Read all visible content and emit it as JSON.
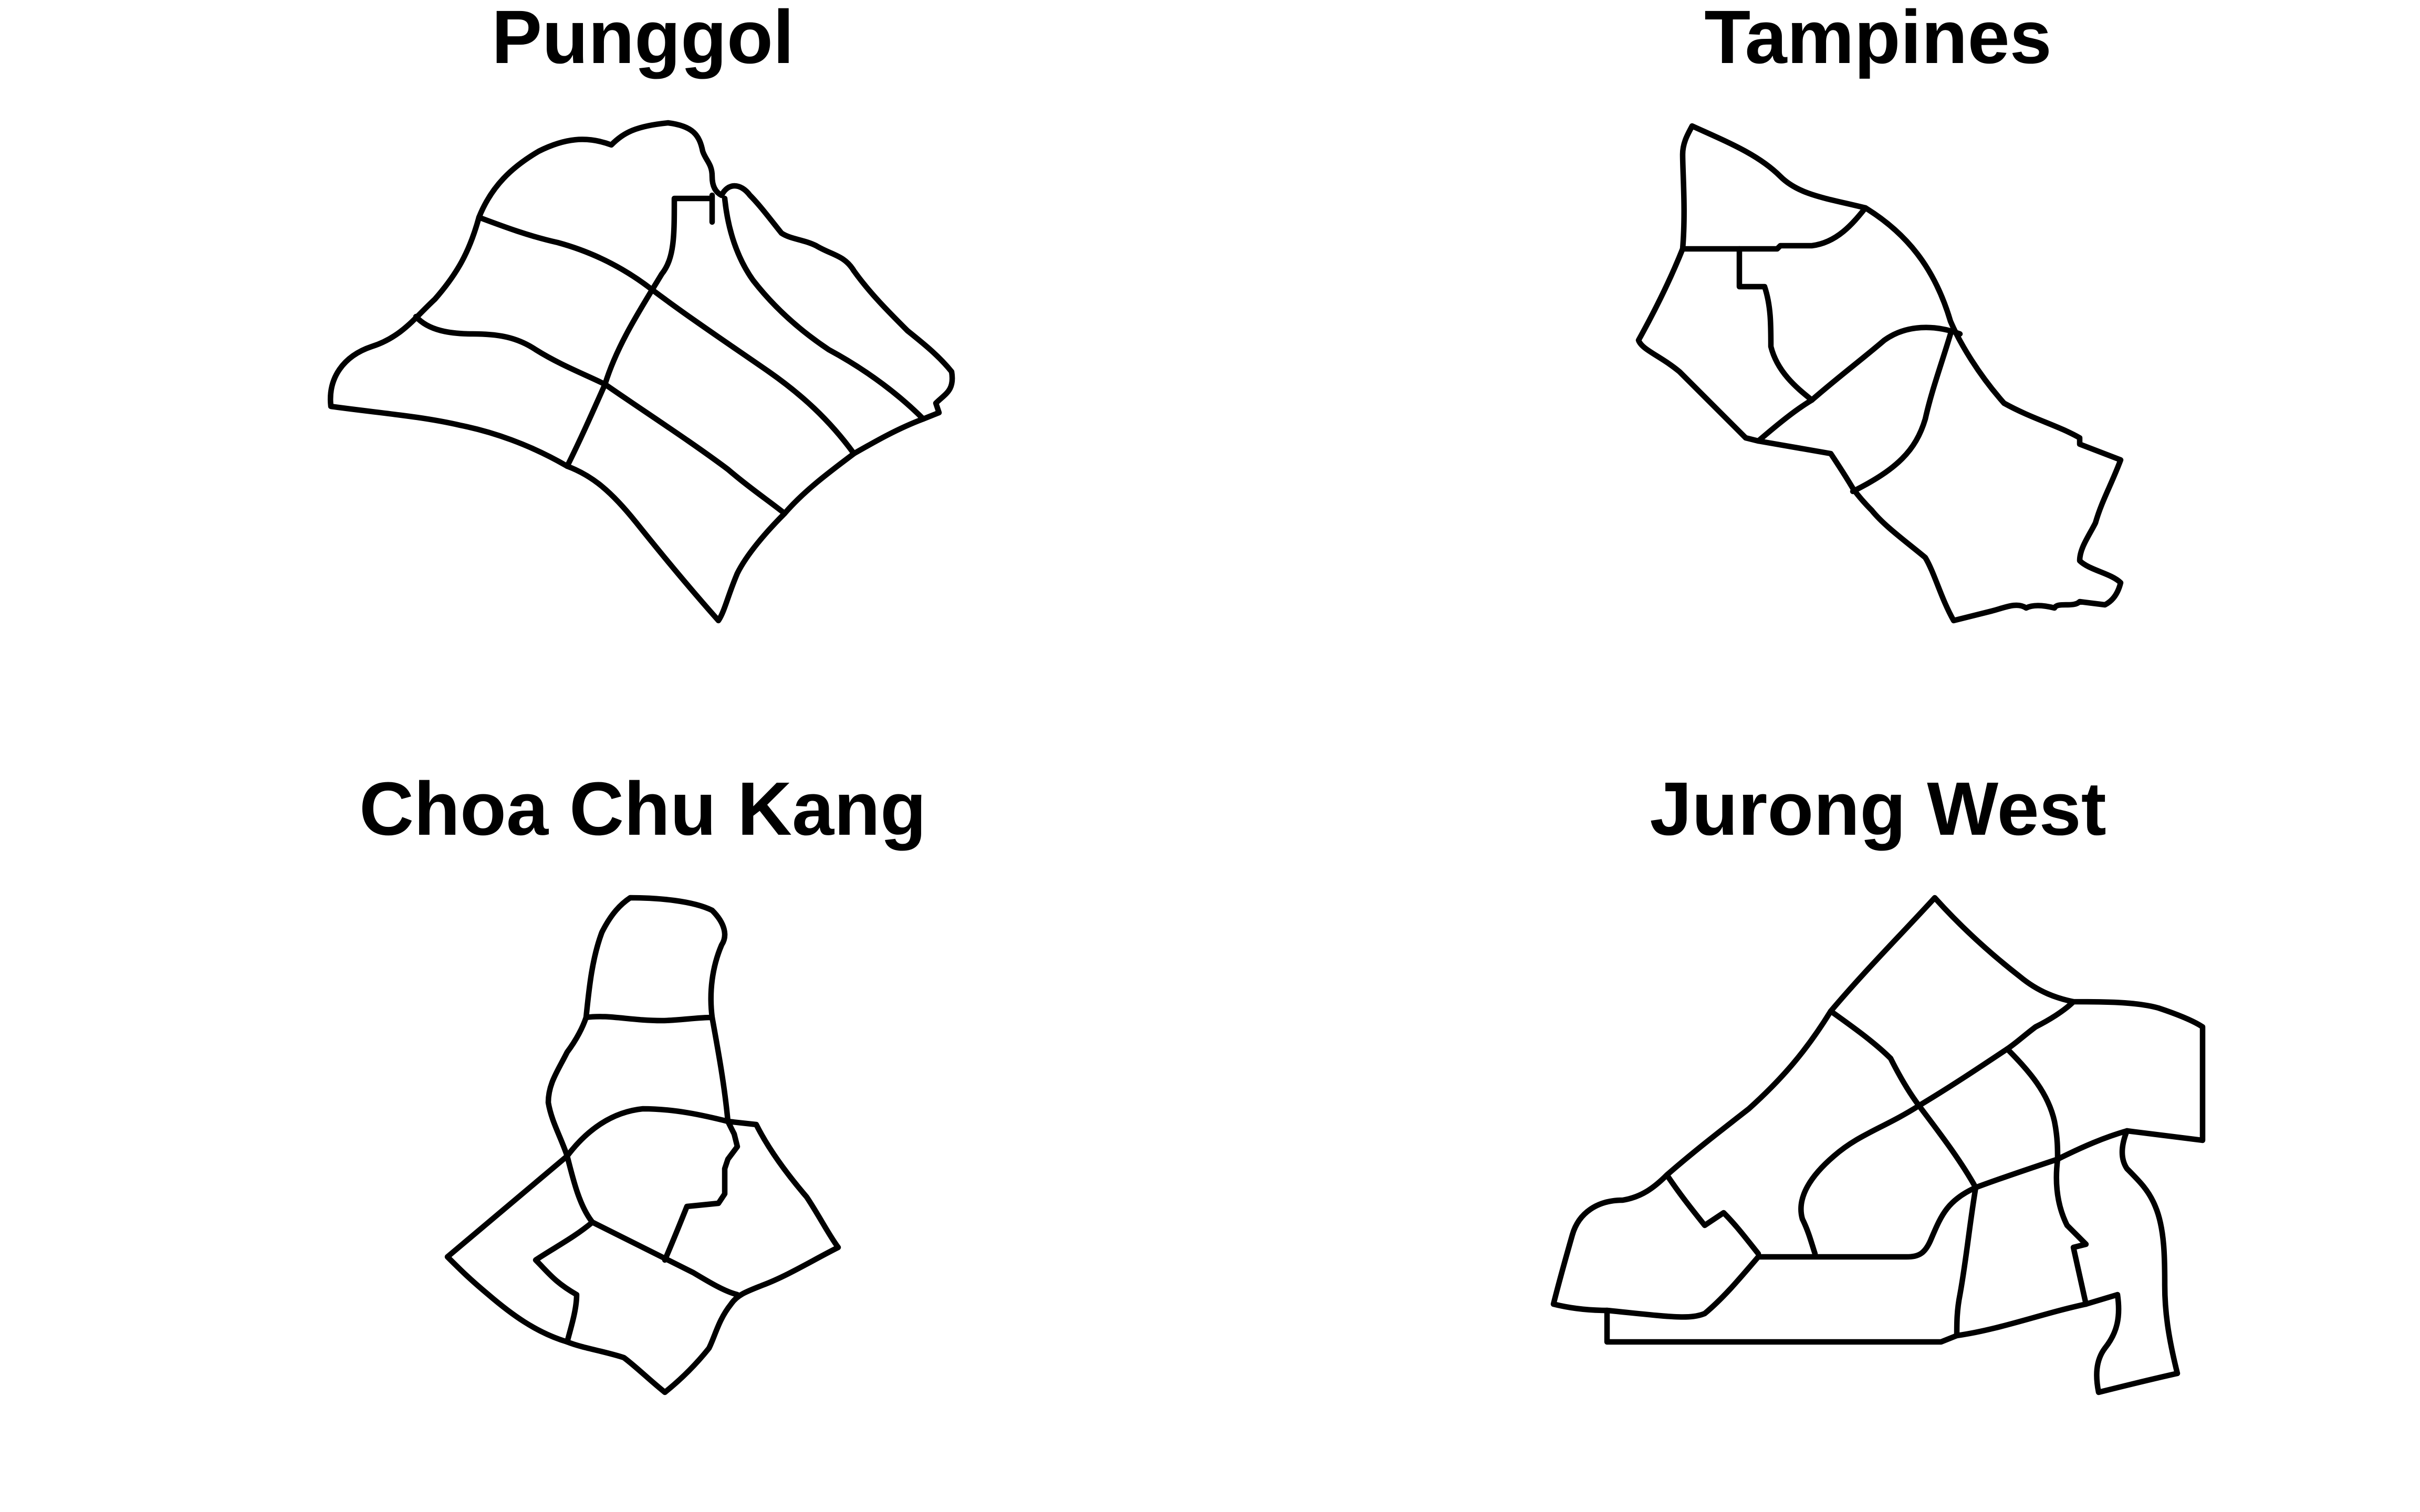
{
  "figure": {
    "panels": [
      {
        "title": "Punggol"
      },
      {
        "title": "Tampines"
      },
      {
        "title": "Choa Chu Kang"
      },
      {
        "title": "Jurong West"
      }
    ]
  },
  "style": {
    "stroke_color": "#000000",
    "fill_color": "#ffffff"
  }
}
